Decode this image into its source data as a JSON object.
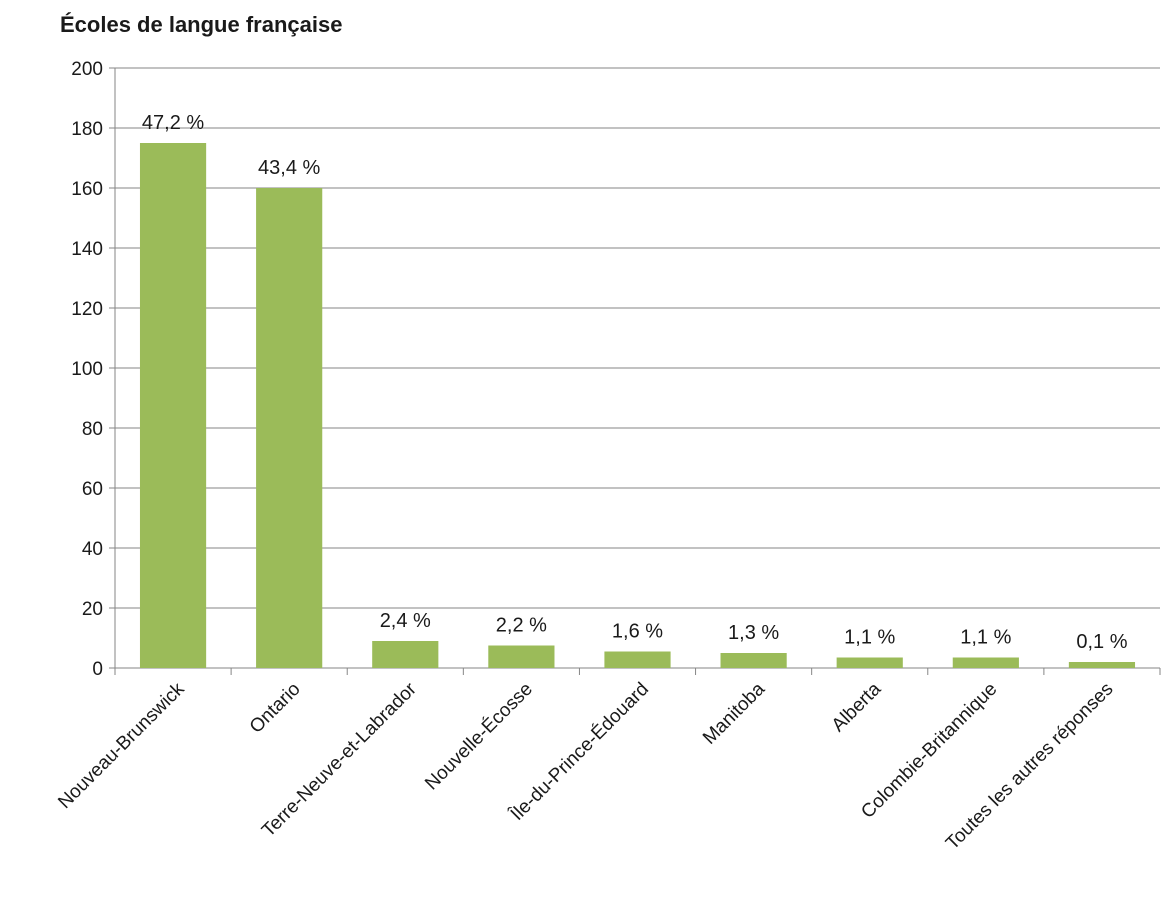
{
  "chart_data": {
    "type": "bar",
    "title": "Écoles de langue française",
    "categories": [
      "Nouveau-Brunswick",
      "Ontario",
      "Terre-Neuve-et-Labrador",
      "Nouvelle-Écosse",
      "Île-du-Prince-Édouard",
      "Manitoba",
      "Alberta",
      "Colombie-Britannique",
      "Toutes les autres réponses"
    ],
    "values": [
      175,
      160,
      9,
      7.5,
      5.5,
      5,
      3.5,
      3.5,
      2
    ],
    "data_labels": [
      "47,2 %",
      "43,4 %",
      "2,4 %",
      "2,2 %",
      "1,6 %",
      "1,3 %",
      "1,1 %",
      "1,1 %",
      "0,1 %"
    ],
    "ylim": [
      0,
      200
    ],
    "yticks": [
      0,
      20,
      40,
      60,
      80,
      100,
      120,
      140,
      160,
      180,
      200
    ],
    "grid": true,
    "bar_color": "#9bbb59",
    "xlabel": "",
    "ylabel": ""
  }
}
